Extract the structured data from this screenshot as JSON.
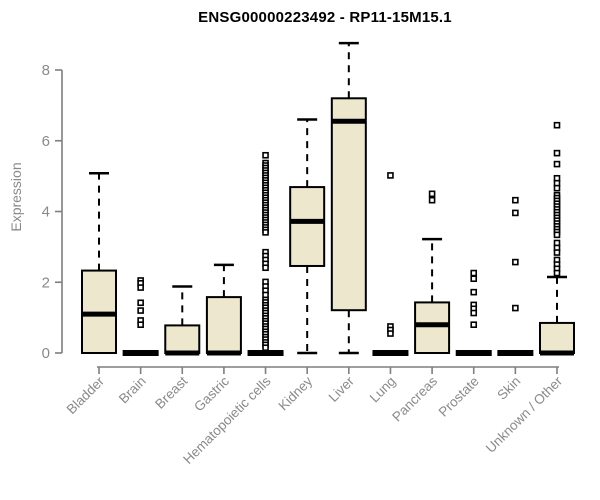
{
  "chart": {
    "title": "ENSG00000223492 - RP11-15M15.1",
    "ylabel": "Expression"
  },
  "chart_data": {
    "type": "boxplot",
    "title": "ENSG00000223492 - RP11-15M15.1",
    "xlabel": "",
    "ylabel": "Expression",
    "ylim": [
      0,
      8.8
    ],
    "yticks": [
      0,
      2,
      4,
      6,
      8
    ],
    "grid": false,
    "legend": "none",
    "colors": {
      "box_fill": "#EDE7CD",
      "box_border": "#000000",
      "median": "#000000",
      "whisker": "#000000",
      "outlier": "#000000",
      "axis": "#7f7f7f",
      "tick_label": "#8a8a8a",
      "title": "#000000",
      "background": "#ffffff"
    },
    "categories": [
      "Bladder",
      "Brain",
      "Breast",
      "Gastric",
      "Hematopoietic cells",
      "Kidney",
      "Liver",
      "Lung",
      "Pancreas",
      "Prostate",
      "Skin",
      "Unknown / Other"
    ],
    "series": [
      {
        "name": "Bladder",
        "whisker_low": 0,
        "q1": 0,
        "median": 1.1,
        "q3": 2.33,
        "whisker_high": 5.08,
        "outliers": []
      },
      {
        "name": "Brain",
        "whisker_low": 0,
        "q1": 0,
        "median": 0,
        "q3": 0,
        "whisker_high": 0,
        "outliers": [
          2.05,
          1.97,
          1.85,
          1.42,
          1.2,
          0.92,
          0.8
        ]
      },
      {
        "name": "Breast",
        "whisker_low": 0,
        "q1": 0,
        "median": 0,
        "q3": 0.78,
        "whisker_high": 1.88,
        "outliers": []
      },
      {
        "name": "Gastric",
        "whisker_low": 0,
        "q1": 0,
        "median": 0,
        "q3": 1.58,
        "whisker_high": 2.49,
        "outliers": []
      },
      {
        "name": "Hematopoietic cells",
        "whisker_low": 0,
        "q1": 0,
        "median": 0,
        "q3": 0,
        "whisker_high": 0,
        "outliers": [
          5.59,
          5.37,
          5.3,
          5.23,
          5.16,
          5.09,
          5.02,
          4.95,
          4.88,
          4.81,
          4.74,
          4.67,
          4.6,
          4.53,
          4.46,
          4.39,
          4.32,
          4.25,
          4.18,
          4.11,
          4.04,
          3.97,
          3.9,
          3.83,
          3.76,
          3.69,
          3.62,
          3.55,
          3.48,
          3.41,
          2.85,
          2.74,
          2.63,
          2.52,
          2.41,
          2.01,
          1.88,
          1.76,
          1.64,
          1.5,
          1.43,
          1.35,
          1.28,
          1.2,
          1.13,
          1.05,
          0.98,
          0.9,
          0.83,
          0.75,
          0.68,
          0.6,
          0.53,
          0.45,
          0.38,
          0.3,
          0.23,
          0.15
        ]
      },
      {
        "name": "Kidney",
        "whisker_low": 0,
        "q1": 2.46,
        "median": 3.72,
        "q3": 4.69,
        "whisker_high": 6.6,
        "outliers": []
      },
      {
        "name": "Liver",
        "whisker_low": 0,
        "q1": 1.21,
        "median": 6.55,
        "q3": 7.2,
        "whisker_high": 8.76,
        "outliers": []
      },
      {
        "name": "Lung",
        "whisker_low": 0,
        "q1": 0,
        "median": 0,
        "q3": 0,
        "whisker_high": 0,
        "outliers": [
          5.02,
          0.75,
          0.65,
          0.55
        ]
      },
      {
        "name": "Pancreas",
        "whisker_low": 0,
        "q1": 0,
        "median": 0.8,
        "q3": 1.43,
        "whisker_high": 3.22,
        "outliers": [
          4.5,
          4.32
        ]
      },
      {
        "name": "Prostate",
        "whisker_low": 0,
        "q1": 0,
        "median": 0,
        "q3": 0,
        "whisker_high": 0,
        "outliers": [
          2.26,
          2.1,
          1.72,
          1.36,
          1.25,
          1.13,
          0.8
        ]
      },
      {
        "name": "Skin",
        "whisker_low": 0,
        "q1": 0,
        "median": 0,
        "q3": 0,
        "whisker_high": 0,
        "outliers": [
          4.32,
          3.96,
          2.57,
          1.27
        ]
      },
      {
        "name": "Unknown / Other",
        "whisker_low": 0,
        "q1": 0,
        "median": 0,
        "q3": 0.85,
        "whisker_high": 2.15,
        "outliers": [
          6.44,
          5.65,
          5.34,
          4.94,
          4.8,
          4.66,
          4.46,
          4.38,
          4.3,
          4.22,
          4.14,
          4.06,
          3.98,
          3.9,
          3.82,
          3.74,
          3.66,
          3.58,
          3.5,
          3.42,
          3.34,
          3.11,
          2.97,
          2.84,
          2.63,
          2.5,
          2.38,
          2.26
        ]
      }
    ]
  }
}
